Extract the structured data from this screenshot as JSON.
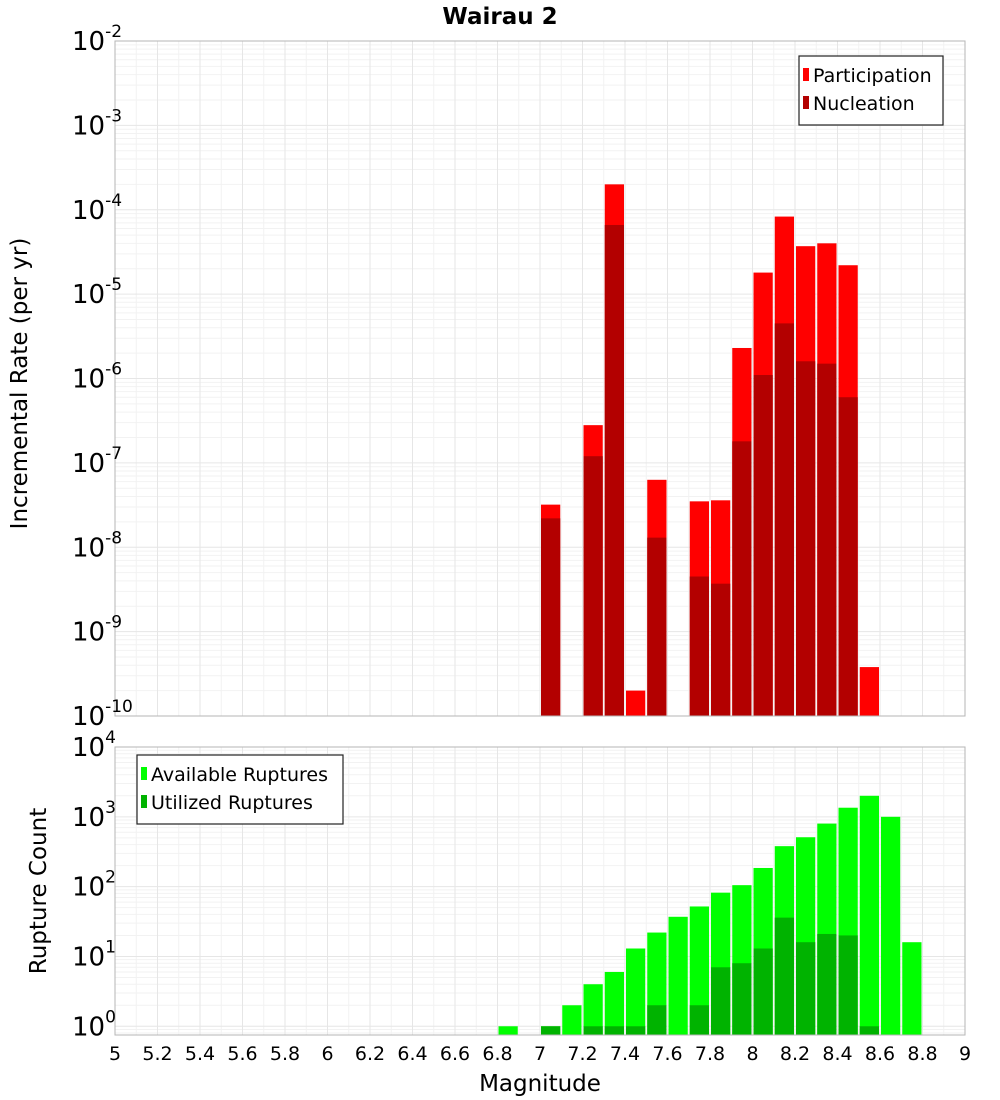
{
  "chart_data": [
    {
      "type": "bar",
      "title": "Wairau 2",
      "xlabel": "",
      "ylabel": "Incremental Rate (per yr)",
      "xlim": [
        5,
        9
      ],
      "ylim": [
        1e-10,
        0.01
      ],
      "yscale": "log",
      "ytick_labels": [
        {
          "base": "10",
          "exp": "-10"
        },
        {
          "base": "10",
          "exp": "-9"
        },
        {
          "base": "10",
          "exp": "-8"
        },
        {
          "base": "10",
          "exp": "-7"
        },
        {
          "base": "10",
          "exp": "-6"
        },
        {
          "base": "10",
          "exp": "-5"
        },
        {
          "base": "10",
          "exp": "-4"
        },
        {
          "base": "10",
          "exp": "-3"
        },
        {
          "base": "10",
          "exp": "-2"
        }
      ],
      "legend_position": "top-right",
      "series": [
        {
          "name": "Participation",
          "color": "#ff0000",
          "points": [
            {
              "x": 7.05,
              "y": 3.2e-08
            },
            {
              "x": 7.25,
              "y": 2.8e-07
            },
            {
              "x": 7.35,
              "y": 0.0002
            },
            {
              "x": 7.45,
              "y": 2e-10
            },
            {
              "x": 7.55,
              "y": 6.3e-08
            },
            {
              "x": 7.75,
              "y": 3.5e-08
            },
            {
              "x": 7.85,
              "y": 3.6e-08
            },
            {
              "x": 7.95,
              "y": 2.3e-06
            },
            {
              "x": 8.05,
              "y": 1.8e-05
            },
            {
              "x": 8.15,
              "y": 8.3e-05
            },
            {
              "x": 8.25,
              "y": 3.7e-05
            },
            {
              "x": 8.35,
              "y": 4e-05
            },
            {
              "x": 8.45,
              "y": 2.2e-05
            },
            {
              "x": 8.55,
              "y": 3.8e-10
            }
          ]
        },
        {
          "name": "Nucleation",
          "color": "#b30000",
          "points": [
            {
              "x": 7.05,
              "y": 2.2e-08
            },
            {
              "x": 7.25,
              "y": 1.2e-07
            },
            {
              "x": 7.35,
              "y": 6.6e-05
            },
            {
              "x": 7.55,
              "y": 1.3e-08
            },
            {
              "x": 7.75,
              "y": 4.5e-09
            },
            {
              "x": 7.85,
              "y": 3.7e-09
            },
            {
              "x": 7.95,
              "y": 1.8e-07
            },
            {
              "x": 8.05,
              "y": 1.1e-06
            },
            {
              "x": 8.15,
              "y": 4.5e-06
            },
            {
              "x": 8.25,
              "y": 1.6e-06
            },
            {
              "x": 8.35,
              "y": 1.5e-06
            },
            {
              "x": 8.45,
              "y": 6e-07
            }
          ]
        }
      ]
    },
    {
      "type": "bar",
      "title": "",
      "xlabel": "Magnitude",
      "ylabel": "Rupture Count",
      "xlim": [
        5,
        9
      ],
      "ylim": [
        0.75,
        10000
      ],
      "yscale": "log",
      "xtick_labels": [
        "5",
        "5.2",
        "5.4",
        "5.6",
        "5.8",
        "6",
        "6.2",
        "6.4",
        "6.6",
        "6.8",
        "7",
        "7.2",
        "7.4",
        "7.6",
        "7.8",
        "8",
        "8.2",
        "8.4",
        "8.6",
        "8.8",
        "9"
      ],
      "ytick_labels": [
        {
          "base": "10",
          "exp": "0"
        },
        {
          "base": "10",
          "exp": "1"
        },
        {
          "base": "10",
          "exp": "2"
        },
        {
          "base": "10",
          "exp": "3"
        },
        {
          "base": "10",
          "exp": "4"
        }
      ],
      "legend_position": "top-left",
      "series": [
        {
          "name": "Available Ruptures",
          "color": "#00ff00",
          "points": [
            {
              "x": 6.85,
              "y": 1
            },
            {
              "x": 7.05,
              "y": 1
            },
            {
              "x": 7.15,
              "y": 2
            },
            {
              "x": 7.25,
              "y": 4
            },
            {
              "x": 7.35,
              "y": 6
            },
            {
              "x": 7.45,
              "y": 13
            },
            {
              "x": 7.55,
              "y": 22
            },
            {
              "x": 7.65,
              "y": 37
            },
            {
              "x": 7.75,
              "y": 52
            },
            {
              "x": 7.85,
              "y": 82
            },
            {
              "x": 7.95,
              "y": 105
            },
            {
              "x": 8.05,
              "y": 185
            },
            {
              "x": 8.15,
              "y": 380
            },
            {
              "x": 8.25,
              "y": 510
            },
            {
              "x": 8.35,
              "y": 800
            },
            {
              "x": 8.45,
              "y": 1350
            },
            {
              "x": 8.55,
              "y": 2000
            },
            {
              "x": 8.65,
              "y": 1000
            },
            {
              "x": 8.75,
              "y": 16
            }
          ]
        },
        {
          "name": "Utilized Ruptures",
          "color": "#00b300",
          "points": [
            {
              "x": 7.05,
              "y": 1
            },
            {
              "x": 7.25,
              "y": 1
            },
            {
              "x": 7.35,
              "y": 1
            },
            {
              "x": 7.45,
              "y": 1
            },
            {
              "x": 7.55,
              "y": 2
            },
            {
              "x": 7.75,
              "y": 2
            },
            {
              "x": 7.85,
              "y": 7
            },
            {
              "x": 7.95,
              "y": 8
            },
            {
              "x": 8.05,
              "y": 13
            },
            {
              "x": 8.15,
              "y": 36
            },
            {
              "x": 8.25,
              "y": 16
            },
            {
              "x": 8.35,
              "y": 21
            },
            {
              "x": 8.45,
              "y": 20
            },
            {
              "x": 8.55,
              "y": 1
            }
          ]
        }
      ]
    }
  ]
}
